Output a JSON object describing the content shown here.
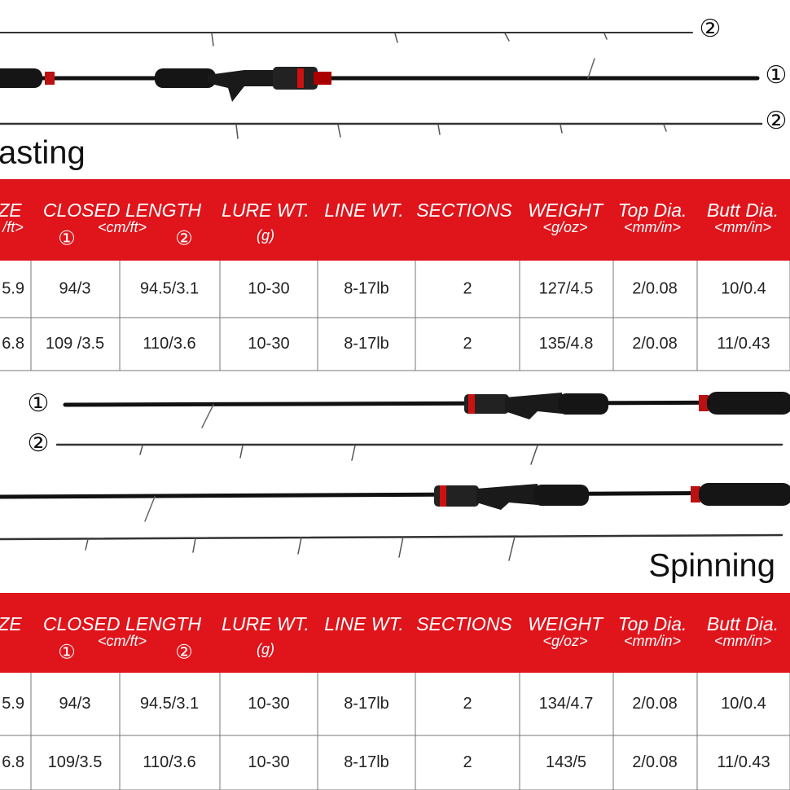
{
  "casting": {
    "title": "asting",
    "rod_labels": [
      "②",
      "①",
      "②"
    ],
    "table": {
      "headers": [
        {
          "text": "ZE",
          "sub": "/ft>"
        },
        {
          "text": "CLOSED LENGTH",
          "sub": "<cm/ft>",
          "marks": [
            "①",
            "②"
          ]
        },
        {
          "text": "LURE WT.",
          "sub": "(g)"
        },
        {
          "text": "LINE WT."
        },
        {
          "text": "SECTIONS"
        },
        {
          "text": "WEIGHT",
          "sub": "<g/oz>"
        },
        {
          "text": "Top Dia.",
          "sub": "<mm/in>"
        },
        {
          "text": "Butt Dia.",
          "sub": "<mm/in>"
        }
      ],
      "rows": [
        [
          "5.9",
          "94/3",
          "94.5/3.1",
          "10-30",
          "8-17lb",
          "2",
          "127/4.5",
          "2/0.08",
          "10/0.4"
        ],
        [
          "6.8",
          "109 /3.5",
          "110/3.6",
          "10-30",
          "8-17lb",
          "2",
          "135/4.8",
          "2/0.08",
          "11/0.43"
        ]
      ]
    }
  },
  "spinning": {
    "title": "Spinning",
    "rod_labels": [
      "①",
      "②"
    ],
    "table": {
      "headers": [
        {
          "text": "ZE"
        },
        {
          "text": "CLOSED LENGTH",
          "sub": "<cm/ft>",
          "marks": [
            "①",
            "②"
          ]
        },
        {
          "text": "LURE WT.",
          "sub": "(g)"
        },
        {
          "text": "LINE WT."
        },
        {
          "text": "SECTIONS"
        },
        {
          "text": "WEIGHT",
          "sub": "<g/oz>"
        },
        {
          "text": "Top Dia.",
          "sub": "<mm/in>"
        },
        {
          "text": "Butt Dia.",
          "sub": "<mm/in>"
        }
      ],
      "rows": [
        [
          "5.9",
          "94/3",
          "94.5/3.1",
          "10-30",
          "8-17lb",
          "2",
          "134/4.7",
          "2/0.08",
          "10/0.4"
        ],
        [
          "6.8",
          "109/3.5",
          "110/3.6",
          "10-30",
          "8-17lb",
          "2",
          "143/5",
          "2/0.08",
          "11/0.43"
        ]
      ]
    }
  }
}
